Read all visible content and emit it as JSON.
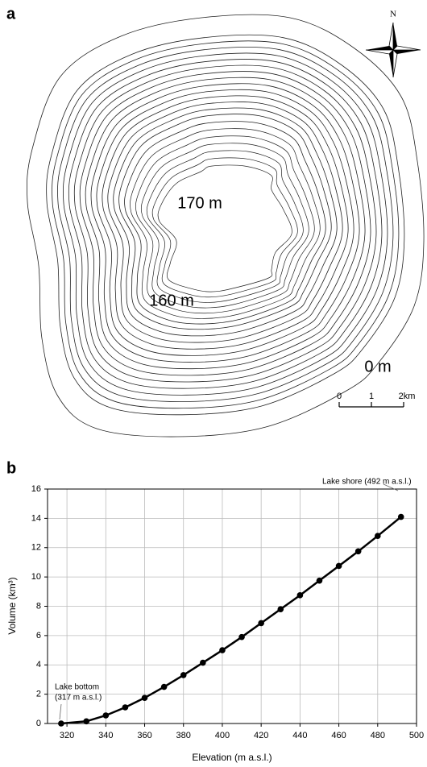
{
  "panel_a": {
    "label": "a",
    "north": "N",
    "contour_labels": [
      "170 m",
      "160 m",
      "0 m"
    ],
    "scale_labels": [
      "0",
      "1",
      "2km"
    ]
  },
  "chart_data": {
    "type": "line",
    "panel_label": "b",
    "x_label": "Elevation (m a.s.l.)",
    "y_label": "Volume (km³)",
    "x": [
      317,
      330,
      340,
      350,
      360,
      370,
      380,
      390,
      400,
      410,
      420,
      430,
      440,
      450,
      460,
      470,
      480,
      492
    ],
    "values": [
      0,
      0.15,
      0.55,
      1.1,
      1.75,
      2.5,
      3.3,
      4.15,
      5.0,
      5.9,
      6.85,
      7.8,
      8.75,
      9.75,
      10.75,
      11.75,
      12.8,
      14.1
    ],
    "color": "#000000",
    "xlim": [
      310,
      500
    ],
    "xticks": [
      320,
      340,
      360,
      380,
      400,
      420,
      440,
      460,
      480,
      500
    ],
    "ylim": [
      0,
      16
    ],
    "yticks": [
      0,
      2,
      4,
      6,
      8,
      10,
      12,
      14,
      16
    ],
    "grid": true,
    "annotations": [
      {
        "lines": [
          "Lake shore (492 m a.s.l.)"
        ]
      },
      {
        "lines": [
          "Lake bottom",
          "(317 m a.s.l.)"
        ]
      }
    ]
  }
}
